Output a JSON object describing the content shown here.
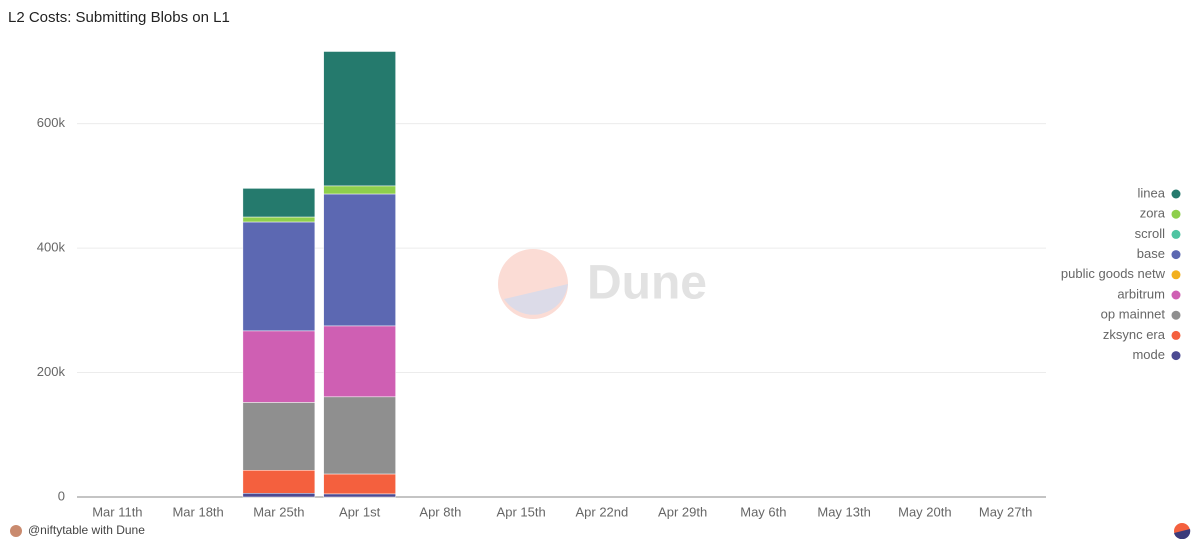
{
  "chart_data": {
    "type": "bar",
    "stacked": true,
    "title": "L2 Costs: Submitting Blobs on L1",
    "watermark": "Dune",
    "footer": "@niftytable with Dune",
    "categories": [
      "Mar 11th",
      "Mar 18th",
      "Mar 25th",
      "Apr 1st",
      "Apr 8th",
      "Apr 15th",
      "Apr 22nd",
      "Apr 29th",
      "May 6th",
      "May 13th",
      "May 20th",
      "May 27th"
    ],
    "series": [
      {
        "name": "mode",
        "color": "#4b4a92",
        "values": [
          null,
          null,
          6000,
          5000,
          null,
          null,
          null,
          null,
          null,
          null,
          null,
          null
        ]
      },
      {
        "name": "zksync era",
        "color": "#f4603e",
        "values": [
          null,
          null,
          37000,
          32000,
          null,
          null,
          null,
          null,
          null,
          null,
          null,
          null
        ]
      },
      {
        "name": "op mainnet",
        "color": "#8f8f8f",
        "values": [
          null,
          null,
          109000,
          124000,
          null,
          null,
          null,
          null,
          null,
          null,
          null,
          null
        ]
      },
      {
        "name": "arbitrum",
        "color": "#cf5fb3",
        "values": [
          null,
          null,
          115000,
          114000,
          null,
          null,
          null,
          null,
          null,
          null,
          null,
          null
        ]
      },
      {
        "name": "public goods netw",
        "color": "#f2b01e",
        "values": [
          null,
          null,
          0,
          0,
          null,
          null,
          null,
          null,
          null,
          null,
          null,
          null
        ]
      },
      {
        "name": "base",
        "color": "#5c68b2",
        "values": [
          null,
          null,
          175000,
          212000,
          null,
          null,
          null,
          null,
          null,
          null,
          null,
          null
        ]
      },
      {
        "name": "scroll",
        "color": "#4fc4a2",
        "values": [
          null,
          null,
          0,
          0,
          null,
          null,
          null,
          null,
          null,
          null,
          null,
          null
        ]
      },
      {
        "name": "zora",
        "color": "#8ecf4c",
        "values": [
          null,
          null,
          8000,
          13000,
          null,
          null,
          null,
          null,
          null,
          null,
          null,
          null
        ]
      },
      {
        "name": "linea",
        "color": "#257a6d",
        "values": [
          null,
          null,
          46000,
          216000,
          null,
          null,
          null,
          null,
          null,
          null,
          null,
          null
        ]
      }
    ],
    "ylim": [
      0,
      720000
    ],
    "yticks": [
      0,
      {
        "value": 200000,
        "label": "200k"
      },
      {
        "value": 400000,
        "label": "400k"
      },
      {
        "value": 600000,
        "label": "600k"
      }
    ],
    "grid": true,
    "legend": "right"
  }
}
